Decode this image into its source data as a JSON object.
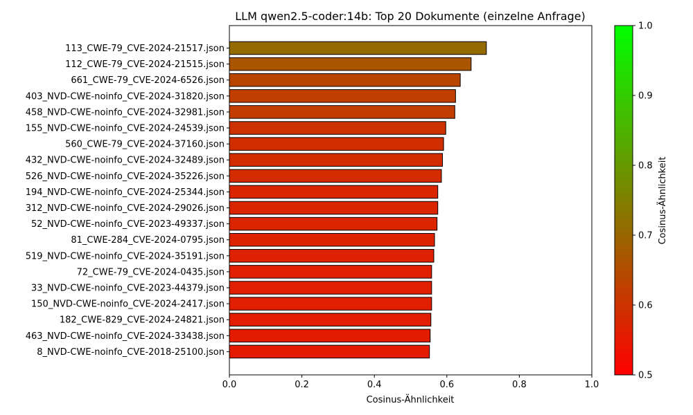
{
  "chart_data": {
    "type": "bar",
    "orientation": "horizontal",
    "title": "LLM qwen2.5-coder:14b: Top 20 Dokumente (einzelne Anfrage)",
    "xlabel": "Cosinus-Ähnlichkeit",
    "ylabel": "",
    "xlim": [
      0,
      1.0
    ],
    "xticks": [
      "0.0",
      "0.2",
      "0.4",
      "0.6",
      "0.8",
      "1.0"
    ],
    "grid": false,
    "categories": [
      "113_CWE-79_CVE-2024-21517.json",
      "112_CWE-79_CVE-2024-21515.json",
      "661_CWE-79_CVE-2024-6526.json",
      "403_NVD-CWE-noinfo_CVE-2024-31820.json",
      "458_NVD-CWE-noinfo_CVE-2024-32981.json",
      "155_NVD-CWE-noinfo_CVE-2024-24539.json",
      "560_CWE-79_CVE-2024-37160.json",
      "432_NVD-CWE-noinfo_CVE-2024-32489.json",
      "526_NVD-CWE-noinfo_CVE-2024-35226.json",
      "194_NVD-CWE-noinfo_CVE-2024-25344.json",
      "312_NVD-CWE-noinfo_CVE-2024-29026.json",
      "52_NVD-CWE-noinfo_CVE-2023-49337.json",
      "81_CWE-284_CVE-2024-0795.json",
      "519_NVD-CWE-noinfo_CVE-2024-35191.json",
      "72_CWE-79_CVE-2024-0435.json",
      "33_NVD-CWE-noinfo_CVE-2023-44379.json",
      "150_NVD-CWE-noinfo_CVE-2024-2417.json",
      "182_CWE-829_CVE-2024-24821.json",
      "463_NVD-CWE-noinfo_CVE-2024-33438.json",
      "8_NVD-CWE-noinfo_CVE-2018-25100.json"
    ],
    "values": [
      0.709,
      0.667,
      0.637,
      0.624,
      0.622,
      0.597,
      0.591,
      0.588,
      0.585,
      0.575,
      0.575,
      0.573,
      0.566,
      0.564,
      0.558,
      0.558,
      0.558,
      0.556,
      0.554,
      0.552
    ],
    "colorbar": {
      "label": "Cosinus-Ähnlichkeit",
      "range": [
        0.5,
        1.0
      ],
      "ticks": [
        "0.5",
        "0.6",
        "0.7",
        "0.8",
        "0.9",
        "1.0"
      ],
      "color_low": "#ff0000",
      "color_high": "#00ff00"
    },
    "bar_edge_color": "#000000"
  }
}
